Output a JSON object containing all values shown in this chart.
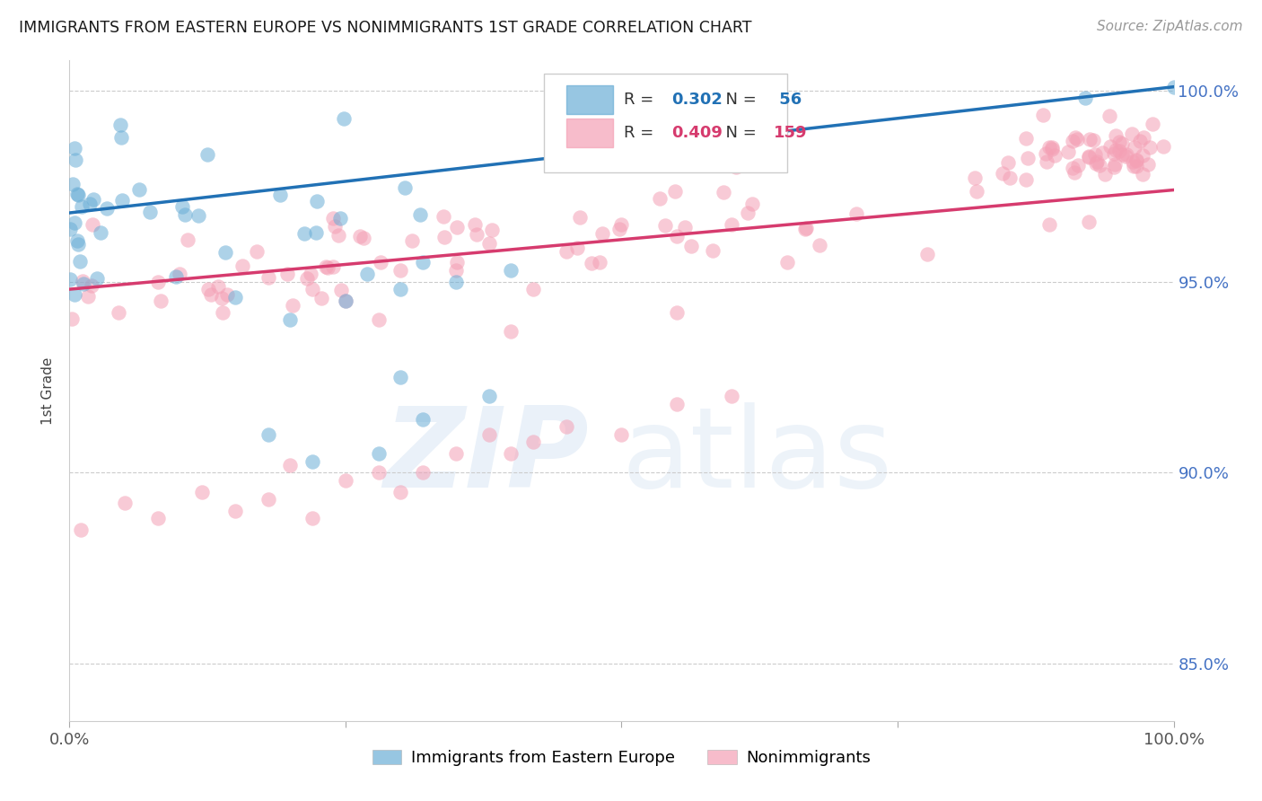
{
  "title": "IMMIGRANTS FROM EASTERN EUROPE VS NONIMMIGRANTS 1ST GRADE CORRELATION CHART",
  "source": "Source: ZipAtlas.com",
  "ylabel": "1st Grade",
  "right_yticks": [
    "85.0%",
    "90.0%",
    "95.0%",
    "100.0%"
  ],
  "right_ytick_values": [
    0.85,
    0.9,
    0.95,
    1.0
  ],
  "xmin": 0.0,
  "xmax": 1.0,
  "ymin": 0.835,
  "ymax": 1.008,
  "blue_R": 0.302,
  "blue_N": 56,
  "pink_R": 0.409,
  "pink_N": 159,
  "blue_color": "#6baed6",
  "pink_color": "#f4a0b5",
  "blue_line_color": "#2171b5",
  "pink_line_color": "#d63b6e",
  "legend_label_blue": "Immigrants from Eastern Europe",
  "legend_label_pink": "Nonimmigrants",
  "background_color": "#ffffff",
  "grid_color": "#cccccc",
  "blue_line_y0": 0.968,
  "blue_line_y1": 1.001,
  "pink_line_y0": 0.948,
  "pink_line_y1": 0.974
}
